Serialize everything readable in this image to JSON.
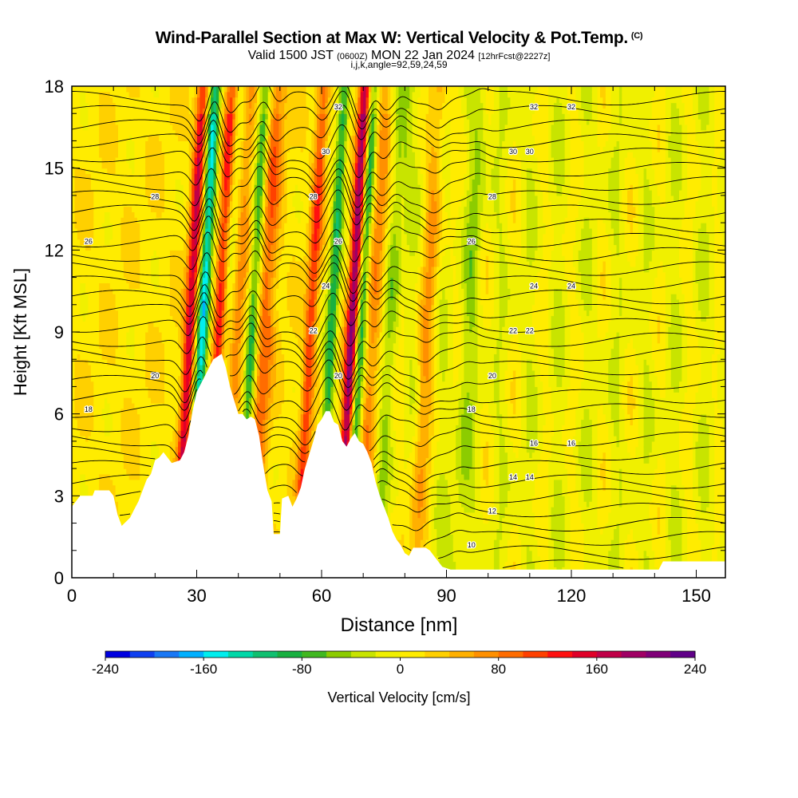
{
  "header": {
    "title": "Wind-Parallel Section at Max W: Vertical Velocity & Pot.Temp.",
    "copyright": "(C)",
    "valid_prefix": "Valid 1500 JST",
    "valid_z": "(0600Z)",
    "valid_date": "MON 22 Jan 2024",
    "forecast": "[12hrFcst@2227z]",
    "indices": "i,j,k,angle=92,59,24,59"
  },
  "chart_data": {
    "type": "heatmap",
    "title": "Wind-Parallel Section at Max W: Vertical Velocity & Pot.Temp.",
    "xlabel": "Distance [nm]",
    "ylabel": "Height [Kft MSL]",
    "xlim": [
      0,
      157
    ],
    "ylim": [
      0,
      18
    ],
    "x_ticks": [
      "0",
      "30",
      "60",
      "90",
      "120",
      "150"
    ],
    "y_ticks": [
      "0",
      "3",
      "6",
      "9",
      "12",
      "15",
      "18"
    ],
    "colorbar": {
      "label": "Vertical Velocity [cm/s]",
      "range": [
        -240,
        240
      ],
      "tick_labels": [
        "-240",
        "-160",
        "-80",
        "0",
        "80",
        "160",
        "240"
      ],
      "colors": [
        "#0000e0",
        "#1040f0",
        "#1a78f5",
        "#00b0ff",
        "#00eeee",
        "#00d8a8",
        "#10c070",
        "#18b040",
        "#40b820",
        "#8ccc00",
        "#c8e400",
        "#f0f000",
        "#ffec00",
        "#ffd000",
        "#ffb000",
        "#ff9000",
        "#ff6c00",
        "#ff4000",
        "#ff1010",
        "#e00028",
        "#c00048",
        "#a00064",
        "#800078",
        "#600088"
      ]
    },
    "terrain": [
      [
        0,
        2.6
      ],
      [
        2,
        3.0
      ],
      [
        5,
        3.0
      ],
      [
        5.5,
        3.2
      ],
      [
        9,
        3.2
      ],
      [
        10,
        3.0
      ],
      [
        11,
        2.3
      ],
      [
        12,
        1.9
      ],
      [
        14,
        2.2
      ],
      [
        15,
        2.5
      ],
      [
        16,
        2.8
      ],
      [
        17,
        3.2
      ],
      [
        18,
        3.6
      ],
      [
        19,
        3.8
      ],
      [
        20,
        4.3
      ],
      [
        21,
        4.4
      ],
      [
        22,
        4.6
      ],
      [
        24,
        4.2
      ],
      [
        26,
        4.3
      ],
      [
        27,
        4.6
      ],
      [
        28,
        5.2
      ],
      [
        29,
        6.1
      ],
      [
        30,
        6.8
      ],
      [
        31,
        7.1
      ],
      [
        32,
        7.4
      ],
      [
        33,
        7.7
      ],
      [
        34,
        8.0
      ],
      [
        36,
        8.2
      ],
      [
        37,
        7.7
      ],
      [
        38,
        7.0
      ],
      [
        39,
        6.5
      ],
      [
        40,
        6.0
      ],
      [
        41,
        6.0
      ],
      [
        42,
        5.8
      ],
      [
        43,
        5.9
      ],
      [
        44,
        5.8
      ],
      [
        45,
        5.2
      ],
      [
        46,
        4.1
      ],
      [
        47,
        3.2
      ],
      [
        48,
        2.8
      ],
      [
        48.5,
        1.6
      ],
      [
        50,
        1.6
      ],
      [
        50.5,
        2.9
      ],
      [
        52,
        3.0
      ],
      [
        53,
        2.6
      ],
      [
        54,
        2.9
      ],
      [
        55,
        3.3
      ],
      [
        56,
        4.0
      ],
      [
        57,
        4.5
      ],
      [
        58,
        5.0
      ],
      [
        59,
        5.6
      ],
      [
        60,
        5.8
      ],
      [
        61,
        6.1
      ],
      [
        62,
        6.1
      ],
      [
        63,
        5.7
      ],
      [
        64,
        5.6
      ],
      [
        65,
        5.0
      ],
      [
        66,
        4.8
      ],
      [
        67,
        5.1
      ],
      [
        68,
        5.3
      ],
      [
        69,
        5.0
      ],
      [
        70,
        4.9
      ],
      [
        71,
        4.6
      ],
      [
        72,
        4.2
      ],
      [
        73,
        3.5
      ],
      [
        74,
        3.0
      ],
      [
        75,
        2.6
      ],
      [
        76,
        2.2
      ],
      [
        77,
        1.7
      ],
      [
        78,
        1.4
      ],
      [
        79,
        1.2
      ],
      [
        80,
        0.9
      ],
      [
        81,
        0.8
      ],
      [
        82,
        1.1
      ],
      [
        85,
        1.1
      ],
      [
        86,
        1.0
      ],
      [
        87,
        0.8
      ],
      [
        88,
        0.6
      ],
      [
        89,
        0.4
      ],
      [
        91,
        0.3
      ],
      [
        141,
        0.3
      ],
      [
        142,
        0.6
      ],
      [
        157,
        0.6
      ]
    ],
    "updrafts_cm_s": [
      {
        "x": 28,
        "w": 150
      },
      {
        "x": 35,
        "w": 120
      },
      {
        "x": 39,
        "w": 80
      },
      {
        "x": 46,
        "w": 80
      },
      {
        "x": 57,
        "w": 100
      },
      {
        "x": 67,
        "w": 200
      },
      {
        "x": 72,
        "w": 60
      },
      {
        "x": 85,
        "w": 60
      }
    ],
    "downdrafts_cm_s": [
      {
        "x": 31,
        "w": -160
      },
      {
        "x": 37.5,
        "w": -60
      },
      {
        "x": 43,
        "w": -100
      },
      {
        "x": 62,
        "w": -110
      },
      {
        "x": 69,
        "w": -120
      },
      {
        "x": 76,
        "w": -60
      },
      {
        "x": 95,
        "w": -30
      }
    ],
    "theta_contours": [
      "10",
      "12",
      "14",
      "16",
      "18",
      "20",
      "22",
      "24",
      "26",
      "28",
      "30",
      "32"
    ]
  }
}
